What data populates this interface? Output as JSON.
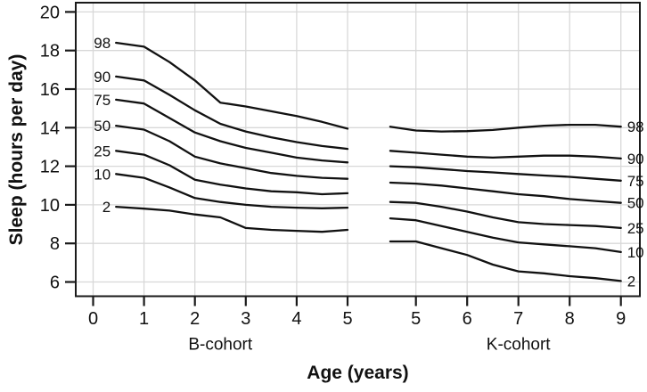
{
  "chart_data": {
    "type": "line",
    "title": "",
    "xlabel": "Age (years)",
    "ylabel": "Sleep (hours per day)",
    "ylim": [
      6,
      20
    ],
    "y_ticks": [
      6,
      8,
      10,
      12,
      14,
      16,
      18,
      20
    ],
    "grid": true,
    "legend_position": "none",
    "colors": {
      "line": "#111111",
      "grid": "#d8d8d8",
      "axis": "#1a1a1a",
      "text": "#111111",
      "background": "#ffffff"
    },
    "panels": [
      {
        "label": "B-cohort",
        "x_ticks": [
          0,
          1,
          2,
          3,
          4,
          5
        ],
        "x_range": [
          0.45,
          5
        ],
        "label_side": "left",
        "series": [
          {
            "name": "98",
            "points": [
              [
                0.45,
                18.4
              ],
              [
                1,
                18.2
              ],
              [
                1.5,
                17.4
              ],
              [
                2,
                16.45
              ],
              [
                2.5,
                15.3
              ],
              [
                3,
                15.1
              ],
              [
                3.5,
                14.85
              ],
              [
                4,
                14.6
              ],
              [
                4.5,
                14.3
              ],
              [
                5,
                13.95
              ]
            ]
          },
          {
            "name": "90",
            "points": [
              [
                0.45,
                16.65
              ],
              [
                1,
                16.45
              ],
              [
                1.5,
                15.7
              ],
              [
                2,
                14.9
              ],
              [
                2.5,
                14.2
              ],
              [
                3,
                13.8
              ],
              [
                3.5,
                13.5
              ],
              [
                4,
                13.25
              ],
              [
                4.5,
                13.05
              ],
              [
                5,
                12.9
              ]
            ]
          },
          {
            "name": "75",
            "points": [
              [
                0.45,
                15.45
              ],
              [
                1,
                15.25
              ],
              [
                1.5,
                14.5
              ],
              [
                2,
                13.75
              ],
              [
                2.5,
                13.3
              ],
              [
                3,
                12.95
              ],
              [
                3.5,
                12.7
              ],
              [
                4,
                12.45
              ],
              [
                4.5,
                12.3
              ],
              [
                5,
                12.2
              ]
            ]
          },
          {
            "name": "50",
            "points": [
              [
                0.45,
                14.1
              ],
              [
                1,
                13.9
              ],
              [
                1.5,
                13.3
              ],
              [
                2,
                12.5
              ],
              [
                2.5,
                12.15
              ],
              [
                3,
                11.9
              ],
              [
                3.5,
                11.65
              ],
              [
                4,
                11.5
              ],
              [
                4.5,
                11.4
              ],
              [
                5,
                11.35
              ]
            ]
          },
          {
            "name": "25",
            "points": [
              [
                0.45,
                12.8
              ],
              [
                1,
                12.6
              ],
              [
                1.5,
                12.05
              ],
              [
                2,
                11.3
              ],
              [
                2.5,
                11.05
              ],
              [
                3,
                10.85
              ],
              [
                3.5,
                10.7
              ],
              [
                4,
                10.65
              ],
              [
                4.5,
                10.55
              ],
              [
                5,
                10.6
              ]
            ]
          },
          {
            "name": "10",
            "points": [
              [
                0.45,
                11.6
              ],
              [
                1,
                11.4
              ],
              [
                1.5,
                10.9
              ],
              [
                2,
                10.35
              ],
              [
                2.5,
                10.15
              ],
              [
                3,
                10.0
              ],
              [
                3.5,
                9.9
              ],
              [
                4,
                9.85
              ],
              [
                4.5,
                9.82
              ],
              [
                5,
                9.85
              ]
            ]
          },
          {
            "name": "2",
            "points": [
              [
                0.45,
                9.9
              ],
              [
                1,
                9.8
              ],
              [
                1.5,
                9.7
              ],
              [
                2,
                9.5
              ],
              [
                2.5,
                9.35
              ],
              [
                3,
                8.8
              ],
              [
                3.5,
                8.7
              ],
              [
                4,
                8.65
              ],
              [
                4.5,
                8.6
              ],
              [
                5,
                8.7
              ]
            ]
          }
        ]
      },
      {
        "label": "K-cohort",
        "x_ticks": [
          5,
          6,
          7,
          8,
          9
        ],
        "x_range": [
          4.5,
          9
        ],
        "label_side": "right",
        "series": [
          {
            "name": "98",
            "points": [
              [
                4.5,
                14.05
              ],
              [
                5,
                13.85
              ],
              [
                5.5,
                13.8
              ],
              [
                6,
                13.82
              ],
              [
                6.5,
                13.88
              ],
              [
                7,
                14.0
              ],
              [
                7.5,
                14.1
              ],
              [
                8,
                14.15
              ],
              [
                8.5,
                14.15
              ],
              [
                9,
                14.05
              ]
            ]
          },
          {
            "name": "90",
            "points": [
              [
                4.5,
                12.8
              ],
              [
                5,
                12.7
              ],
              [
                5.5,
                12.6
              ],
              [
                6,
                12.5
              ],
              [
                6.5,
                12.45
              ],
              [
                7,
                12.5
              ],
              [
                7.5,
                12.55
              ],
              [
                8,
                12.55
              ],
              [
                8.5,
                12.5
              ],
              [
                9,
                12.4
              ]
            ]
          },
          {
            "name": "75",
            "points": [
              [
                4.5,
                12.0
              ],
              [
                5,
                11.95
              ],
              [
                5.5,
                11.85
              ],
              [
                6,
                11.75
              ],
              [
                6.5,
                11.68
              ],
              [
                7,
                11.6
              ],
              [
                7.5,
                11.52
              ],
              [
                8,
                11.45
              ],
              [
                8.5,
                11.35
              ],
              [
                9,
                11.25
              ]
            ]
          },
          {
            "name": "50",
            "points": [
              [
                4.5,
                11.15
              ],
              [
                5,
                11.1
              ],
              [
                5.5,
                11.0
              ],
              [
                6,
                10.85
              ],
              [
                6.5,
                10.7
              ],
              [
                7,
                10.55
              ],
              [
                7.5,
                10.45
              ],
              [
                8,
                10.3
              ],
              [
                8.5,
                10.2
              ],
              [
                9,
                10.1
              ]
            ]
          },
          {
            "name": "25",
            "points": [
              [
                4.5,
                10.15
              ],
              [
                5,
                10.1
              ],
              [
                5.5,
                9.9
              ],
              [
                6,
                9.65
              ],
              [
                6.5,
                9.35
              ],
              [
                7,
                9.1
              ],
              [
                7.5,
                9.0
              ],
              [
                8,
                8.95
              ],
              [
                8.5,
                8.9
              ],
              [
                9,
                8.8
              ]
            ]
          },
          {
            "name": "10",
            "points": [
              [
                4.5,
                9.3
              ],
              [
                5,
                9.2
              ],
              [
                5.5,
                8.9
              ],
              [
                6,
                8.6
              ],
              [
                6.5,
                8.3
              ],
              [
                7,
                8.05
              ],
              [
                7.5,
                7.95
              ],
              [
                8,
                7.85
              ],
              [
                8.5,
                7.75
              ],
              [
                9,
                7.55
              ]
            ]
          },
          {
            "name": "2",
            "points": [
              [
                4.5,
                8.1
              ],
              [
                5,
                8.1
              ],
              [
                5.5,
                7.75
              ],
              [
                6,
                7.4
              ],
              [
                6.5,
                6.9
              ],
              [
                7,
                6.55
              ],
              [
                7.5,
                6.45
              ],
              [
                8,
                6.3
              ],
              [
                8.5,
                6.2
              ],
              [
                9,
                6.05
              ]
            ]
          }
        ]
      }
    ]
  }
}
